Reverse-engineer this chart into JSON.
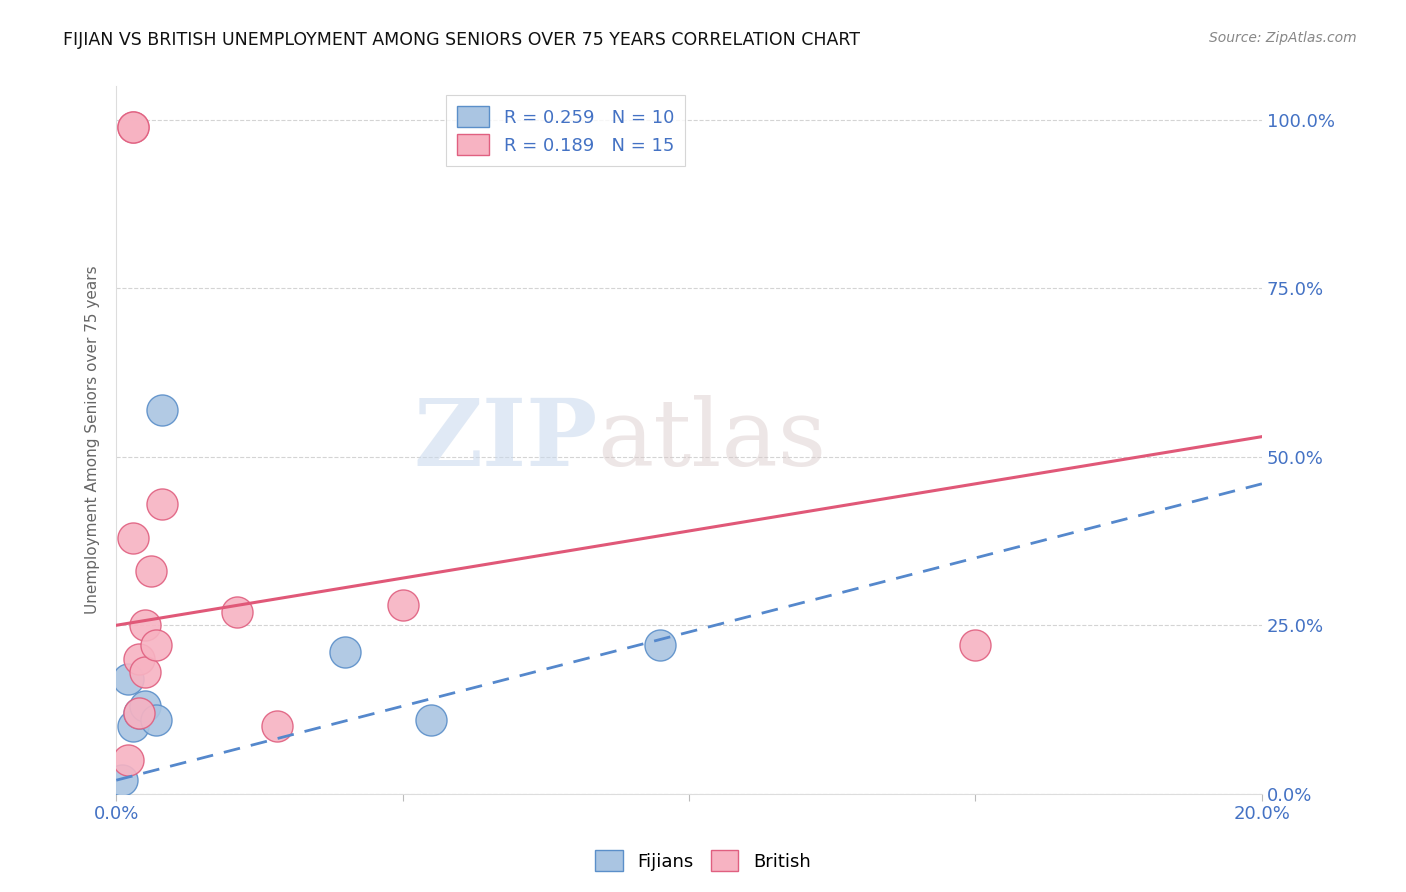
{
  "title": "FIJIAN VS BRITISH UNEMPLOYMENT AMONG SENIORS OVER 75 YEARS CORRELATION CHART",
  "source": "Source: ZipAtlas.com",
  "ylabel": "Unemployment Among Seniors over 75 years",
  "right_ytick_labels": [
    "0.0%",
    "25.0%",
    "50.0%",
    "75.0%",
    "100.0%"
  ],
  "right_ytick_values": [
    0.0,
    0.25,
    0.5,
    0.75,
    1.0
  ],
  "xlim": [
    0.0,
    0.2
  ],
  "ylim": [
    0.0,
    1.05
  ],
  "fijian_color": "#aac5e2",
  "fijian_edge": "#5b8fc9",
  "british_color": "#f7b3c2",
  "british_edge": "#e06080",
  "fijian_r": 0.259,
  "fijian_n": 10,
  "british_r": 0.189,
  "british_n": 15,
  "fijian_x": [
    0.001,
    0.002,
    0.003,
    0.004,
    0.005,
    0.007,
    0.008,
    0.04,
    0.055,
    0.095
  ],
  "fijian_y": [
    0.02,
    0.17,
    0.1,
    0.12,
    0.13,
    0.11,
    0.57,
    0.21,
    0.11,
    0.22
  ],
  "british_x": [
    0.002,
    0.003,
    0.003,
    0.004,
    0.004,
    0.005,
    0.005,
    0.006,
    0.007,
    0.008,
    0.021,
    0.028,
    0.05,
    0.15,
    0.003
  ],
  "british_y": [
    0.05,
    0.99,
    0.99,
    0.12,
    0.2,
    0.18,
    0.25,
    0.33,
    0.22,
    0.43,
    0.27,
    0.1,
    0.28,
    0.22,
    0.38
  ],
  "fijian_trend_x": [
    0.0,
    0.2
  ],
  "fijian_trend_y": [
    0.02,
    0.46
  ],
  "british_trend_x": [
    0.0,
    0.2
  ],
  "british_trend_y": [
    0.25,
    0.53
  ],
  "watermark_zip": "ZIP",
  "watermark_atlas": "atlas",
  "grid_color": "#d0d0d0",
  "grid_style": "--"
}
